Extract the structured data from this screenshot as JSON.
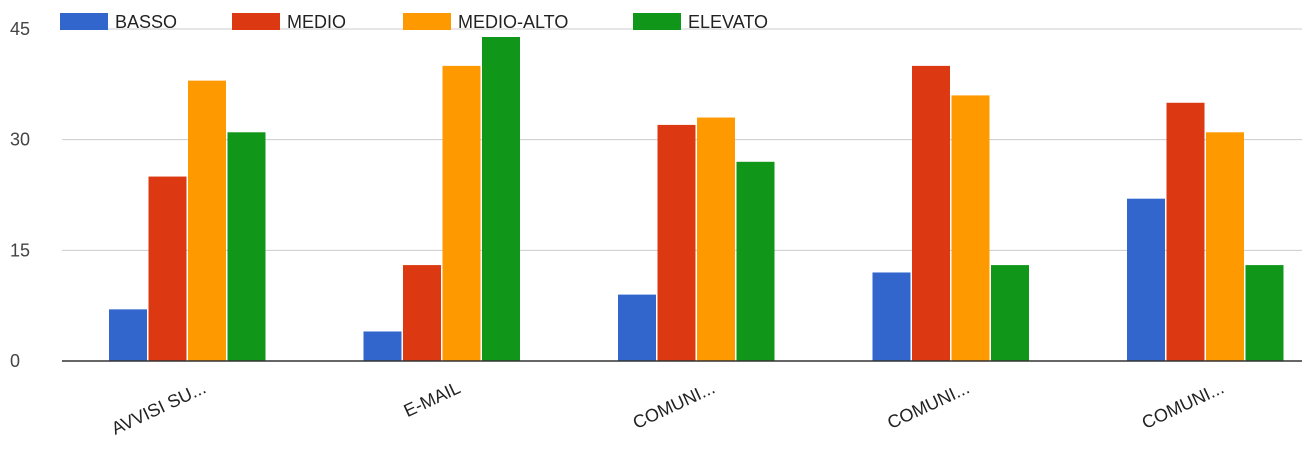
{
  "chart_data": {
    "type": "bar",
    "categories": [
      "AVVISI SU...",
      "E-MAIL",
      "COMUNI...",
      "COMUNI...",
      "COMUNI..."
    ],
    "series": [
      {
        "name": "BASSO",
        "color": "#3366cc",
        "values": [
          7,
          4,
          9,
          12,
          22
        ]
      },
      {
        "name": "MEDIO",
        "color": "#dc3912",
        "values": [
          25,
          13,
          32,
          40,
          35
        ]
      },
      {
        "name": "MEDIO-ALTO",
        "color": "#ff9900",
        "values": [
          38,
          40,
          33,
          36,
          31
        ]
      },
      {
        "name": "ELEVATO",
        "color": "#109618",
        "values": [
          31,
          45,
          27,
          13,
          13
        ]
      }
    ],
    "yticks": [
      "0",
      "15",
      "30",
      "45"
    ],
    "ylim": [
      0,
      45
    ],
    "grid": true,
    "legend_position": "top-left",
    "title": "",
    "xlabel": "",
    "ylabel": ""
  }
}
